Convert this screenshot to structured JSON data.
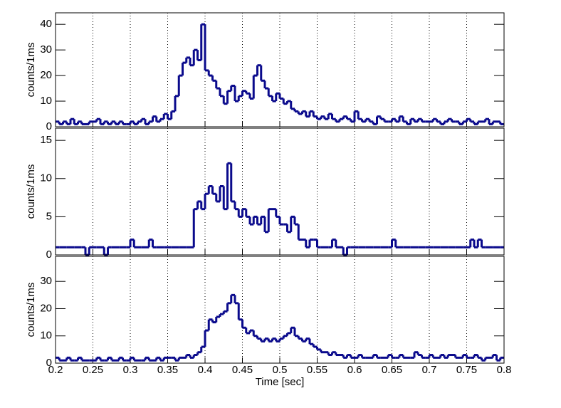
{
  "chart_data": [
    {
      "type": "histogram",
      "ylabel": "counts/1ms",
      "color": "#0a0a8c",
      "grid": true,
      "bins": [
        0.2,
        0.205,
        0.21,
        0.215,
        0.22,
        0.225,
        0.23,
        0.235,
        0.24,
        0.245,
        0.25,
        0.255,
        0.26,
        0.265,
        0.27,
        0.275,
        0.28,
        0.285,
        0.29,
        0.295,
        0.3,
        0.305,
        0.31,
        0.315,
        0.32,
        0.325,
        0.33,
        0.335,
        0.34,
        0.345,
        0.35,
        0.355,
        0.36,
        0.365,
        0.37,
        0.375,
        0.38,
        0.385,
        0.39,
        0.395,
        0.4,
        0.405,
        0.41,
        0.415,
        0.42,
        0.425,
        0.43,
        0.435,
        0.44,
        0.445,
        0.45,
        0.455,
        0.46,
        0.465,
        0.47,
        0.475,
        0.48,
        0.485,
        0.49,
        0.495,
        0.5,
        0.505,
        0.51,
        0.515,
        0.52,
        0.525,
        0.53,
        0.535,
        0.54,
        0.545,
        0.55,
        0.555,
        0.56,
        0.565,
        0.57,
        0.575,
        0.58,
        0.585,
        0.59,
        0.595,
        0.6,
        0.605,
        0.61,
        0.615,
        0.62,
        0.625,
        0.63,
        0.635,
        0.64,
        0.645,
        0.65,
        0.655,
        0.66,
        0.665,
        0.67,
        0.675,
        0.68,
        0.685,
        0.69,
        0.695,
        0.7,
        0.705,
        0.71,
        0.715,
        0.72,
        0.725,
        0.73,
        0.735,
        0.74,
        0.745,
        0.75,
        0.755,
        0.76,
        0.765,
        0.77,
        0.775,
        0.78,
        0.785,
        0.79,
        0.795,
        0.8
      ],
      "values": [
        2,
        1,
        2,
        1,
        3,
        1,
        2,
        1,
        1,
        2,
        2,
        3,
        1,
        2,
        1,
        2,
        1,
        2,
        1,
        1,
        2,
        1,
        2,
        3,
        1,
        2,
        4,
        2,
        3,
        5,
        3,
        6,
        12,
        20,
        25,
        27,
        24,
        30,
        26,
        40,
        22,
        20,
        18,
        15,
        12,
        9,
        14,
        16,
        10,
        12,
        14,
        13,
        11,
        20,
        24,
        18,
        15,
        12,
        10,
        13,
        11,
        9,
        10,
        7,
        6,
        5,
        6,
        4,
        6,
        4,
        3,
        4,
        3,
        5,
        3,
        2,
        3,
        4,
        3,
        2,
        6,
        3,
        2,
        3,
        2,
        1,
        4,
        3,
        2,
        2,
        3,
        2,
        4,
        2,
        1,
        3,
        2,
        3,
        2,
        2,
        2,
        3,
        2,
        1,
        2,
        3,
        2,
        2,
        1,
        2,
        3,
        2,
        1,
        2,
        2,
        3,
        1,
        2,
        2,
        1
      ],
      "xlim": [
        0.2,
        0.8
      ],
      "xticks": [
        0.2,
        0.25,
        0.3,
        0.35,
        0.4,
        0.45,
        0.5,
        0.55,
        0.6,
        0.65,
        0.7,
        0.75,
        0.8
      ],
      "ylim": [
        0,
        44.5
      ],
      "yticks": [
        0,
        10,
        20,
        30,
        40
      ]
    },
    {
      "type": "histogram",
      "ylabel": "counts/1ms",
      "color": "#0a0a8c",
      "grid": true,
      "bins": [
        0.2,
        0.205,
        0.21,
        0.215,
        0.22,
        0.225,
        0.23,
        0.235,
        0.24,
        0.245,
        0.25,
        0.255,
        0.26,
        0.265,
        0.27,
        0.275,
        0.28,
        0.285,
        0.29,
        0.295,
        0.3,
        0.305,
        0.31,
        0.315,
        0.32,
        0.325,
        0.33,
        0.335,
        0.34,
        0.345,
        0.35,
        0.355,
        0.36,
        0.365,
        0.37,
        0.375,
        0.38,
        0.385,
        0.39,
        0.395,
        0.4,
        0.405,
        0.41,
        0.415,
        0.42,
        0.425,
        0.43,
        0.435,
        0.44,
        0.445,
        0.45,
        0.455,
        0.46,
        0.465,
        0.47,
        0.475,
        0.48,
        0.485,
        0.49,
        0.495,
        0.5,
        0.505,
        0.51,
        0.515,
        0.52,
        0.525,
        0.53,
        0.535,
        0.54,
        0.545,
        0.55,
        0.555,
        0.56,
        0.565,
        0.57,
        0.575,
        0.58,
        0.585,
        0.59,
        0.595,
        0.6,
        0.605,
        0.61,
        0.615,
        0.62,
        0.625,
        0.63,
        0.635,
        0.64,
        0.645,
        0.65,
        0.655,
        0.66,
        0.665,
        0.67,
        0.675,
        0.68,
        0.685,
        0.69,
        0.695,
        0.7,
        0.705,
        0.71,
        0.715,
        0.72,
        0.725,
        0.73,
        0.735,
        0.74,
        0.745,
        0.75,
        0.755,
        0.76,
        0.765,
        0.77,
        0.775,
        0.78,
        0.785,
        0.79,
        0.795,
        0.8
      ],
      "values": [
        1,
        1,
        1,
        1,
        1,
        1,
        1,
        1,
        0,
        1,
        1,
        1,
        1,
        0,
        1,
        1,
        1,
        1,
        1,
        1,
        2,
        1,
        1,
        1,
        1,
        2,
        1,
        1,
        1,
        1,
        1,
        1,
        1,
        1,
        1,
        1,
        1,
        6,
        7,
        6,
        8,
        9,
        8,
        7,
        9,
        6,
        12,
        7,
        6,
        5,
        6,
        5,
        4,
        5,
        4,
        5,
        3,
        6,
        6,
        5,
        4,
        4,
        3,
        5,
        4,
        2,
        2,
        1,
        2,
        2,
        1,
        1,
        1,
        1,
        2,
        1,
        1,
        0,
        1,
        1,
        1,
        1,
        1,
        1,
        1,
        1,
        1,
        1,
        1,
        1,
        2,
        1,
        1,
        1,
        1,
        1,
        1,
        1,
        1,
        1,
        1,
        1,
        1,
        1,
        1,
        1,
        1,
        1,
        1,
        1,
        1,
        2,
        1,
        2,
        1,
        1,
        1,
        1,
        1,
        1
      ],
      "xlim": [
        0.2,
        0.8
      ],
      "xticks": [
        0.2,
        0.25,
        0.3,
        0.35,
        0.4,
        0.45,
        0.5,
        0.55,
        0.6,
        0.65,
        0.7,
        0.75,
        0.8
      ],
      "ylim": [
        0,
        16.6
      ],
      "yticks": [
        0,
        5,
        10,
        15
      ]
    },
    {
      "type": "histogram",
      "ylabel": "counts/1ms",
      "xlabel": "Time [sec]",
      "color": "#0a0a8c",
      "grid": true,
      "bins": [
        0.2,
        0.205,
        0.21,
        0.215,
        0.22,
        0.225,
        0.23,
        0.235,
        0.24,
        0.245,
        0.25,
        0.255,
        0.26,
        0.265,
        0.27,
        0.275,
        0.28,
        0.285,
        0.29,
        0.295,
        0.3,
        0.305,
        0.31,
        0.315,
        0.32,
        0.325,
        0.33,
        0.335,
        0.34,
        0.345,
        0.35,
        0.355,
        0.36,
        0.365,
        0.37,
        0.375,
        0.38,
        0.385,
        0.39,
        0.395,
        0.4,
        0.405,
        0.41,
        0.415,
        0.42,
        0.425,
        0.43,
        0.435,
        0.44,
        0.445,
        0.45,
        0.455,
        0.46,
        0.465,
        0.47,
        0.475,
        0.48,
        0.485,
        0.49,
        0.495,
        0.5,
        0.505,
        0.51,
        0.515,
        0.52,
        0.525,
        0.53,
        0.535,
        0.54,
        0.545,
        0.55,
        0.555,
        0.56,
        0.565,
        0.57,
        0.575,
        0.58,
        0.585,
        0.59,
        0.595,
        0.6,
        0.605,
        0.61,
        0.615,
        0.62,
        0.625,
        0.63,
        0.635,
        0.64,
        0.645,
        0.65,
        0.655,
        0.66,
        0.665,
        0.67,
        0.675,
        0.68,
        0.685,
        0.69,
        0.695,
        0.7,
        0.705,
        0.71,
        0.715,
        0.72,
        0.725,
        0.73,
        0.735,
        0.74,
        0.745,
        0.75,
        0.755,
        0.76,
        0.765,
        0.77,
        0.775,
        0.78,
        0.785,
        0.79,
        0.795,
        0.8
      ],
      "values": [
        2,
        1,
        1,
        2,
        1,
        1,
        2,
        1,
        1,
        1,
        1,
        2,
        1,
        1,
        2,
        1,
        1,
        2,
        1,
        1,
        2,
        1,
        1,
        1,
        2,
        1,
        1,
        2,
        1,
        2,
        2,
        2,
        1,
        2,
        2,
        3,
        2,
        3,
        4,
        6,
        12,
        16,
        15,
        17,
        18,
        19,
        22,
        25,
        22,
        16,
        13,
        11,
        12,
        10,
        9,
        8,
        9,
        8,
        9,
        8,
        9,
        10,
        11,
        13,
        10,
        9,
        8,
        9,
        7,
        6,
        5,
        4,
        4,
        3,
        4,
        3,
        3,
        2,
        3,
        2,
        2,
        3,
        2,
        2,
        2,
        3,
        2,
        2,
        2,
        3,
        2,
        2,
        3,
        2,
        2,
        2,
        4,
        3,
        2,
        2,
        3,
        2,
        2,
        3,
        2,
        3,
        3,
        2,
        2,
        3,
        2,
        2,
        3,
        2,
        1,
        2,
        2,
        3,
        1,
        2
      ],
      "xlim": [
        0.2,
        0.8
      ],
      "xticks": [
        0.2,
        0.25,
        0.3,
        0.35,
        0.4,
        0.45,
        0.5,
        0.55,
        0.6,
        0.65,
        0.7,
        0.75,
        0.8
      ],
      "ylim": [
        0,
        39.2
      ],
      "yticks": [
        0,
        10,
        20,
        30
      ]
    }
  ]
}
